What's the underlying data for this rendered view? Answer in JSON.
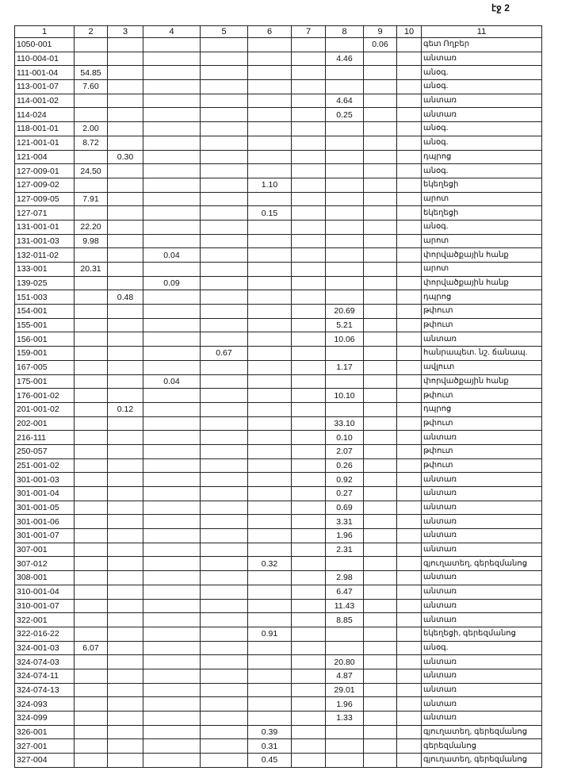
{
  "page_label": "էջ 2",
  "columns": [
    "1",
    "2",
    "3",
    "4",
    "5",
    "6",
    "7",
    "8",
    "9",
    "10",
    "11"
  ],
  "rows": [
    [
      "1050-001",
      "",
      "",
      "",
      "",
      "",
      "",
      "",
      "0.06",
      "",
      "գետ Ողբեր"
    ],
    [
      "110-004-01",
      "",
      "",
      "",
      "",
      "",
      "",
      "4.46",
      "",
      "",
      "անտառ"
    ],
    [
      "111-001-04",
      "54.85",
      "",
      "",
      "",
      "",
      "",
      "",
      "",
      "",
      "անօգ."
    ],
    [
      "113-001-07",
      "7.60",
      "",
      "",
      "",
      "",
      "",
      "",
      "",
      "",
      "անօգ."
    ],
    [
      "114-001-02",
      "",
      "",
      "",
      "",
      "",
      "",
      "4.64",
      "",
      "",
      "անտառ"
    ],
    [
      "114-024",
      "",
      "",
      "",
      "",
      "",
      "",
      "0.25",
      "",
      "",
      "անտառ"
    ],
    [
      "118-001-01",
      "2.00",
      "",
      "",
      "",
      "",
      "",
      "",
      "",
      "",
      "անօգ."
    ],
    [
      "121-001-01",
      "8.72",
      "",
      "",
      "",
      "",
      "",
      "",
      "",
      "",
      "անօգ."
    ],
    [
      "121-004",
      "",
      "0.30",
      "",
      "",
      "",
      "",
      "",
      "",
      "",
      "դպրոց"
    ],
    [
      "127-009-01",
      "24.50",
      "",
      "",
      "",
      "",
      "",
      "",
      "",
      "",
      "անօգ."
    ],
    [
      "127-009-02",
      "",
      "",
      "",
      "",
      "1.10",
      "",
      "",
      "",
      "",
      "եկեղեցի"
    ],
    [
      "127-009-05",
      "7.91",
      "",
      "",
      "",
      "",
      "",
      "",
      "",
      "",
      "արոտ"
    ],
    [
      "127-071",
      "",
      "",
      "",
      "",
      "0.15",
      "",
      "",
      "",
      "",
      "եկեղեցի"
    ],
    [
      "131-001-01",
      "22.20",
      "",
      "",
      "",
      "",
      "",
      "",
      "",
      "",
      "անօգ."
    ],
    [
      "131-001-03",
      "9.98",
      "",
      "",
      "",
      "",
      "",
      "",
      "",
      "",
      "արոտ"
    ],
    [
      "132-011-02",
      "",
      "",
      "0.04",
      "",
      "",
      "",
      "",
      "",
      "",
      "փորվածքային հանք"
    ],
    [
      "133-001",
      "20.31",
      "",
      "",
      "",
      "",
      "",
      "",
      "",
      "",
      "արոտ"
    ],
    [
      "139-025",
      "",
      "",
      "0.09",
      "",
      "",
      "",
      "",
      "",
      "",
      "փորվածքային հանք"
    ],
    [
      "151-003",
      "",
      "0.48",
      "",
      "",
      "",
      "",
      "",
      "",
      "",
      "դպրոց"
    ],
    [
      "154-001",
      "",
      "",
      "",
      "",
      "",
      "",
      "20.69",
      "",
      "",
      "թփուտ"
    ],
    [
      "155-001",
      "",
      "",
      "",
      "",
      "",
      "",
      "5.21",
      "",
      "",
      "թփուտ"
    ],
    [
      "156-001",
      "",
      "",
      "",
      "",
      "",
      "",
      "10.06",
      "",
      "",
      "անտառ"
    ],
    [
      "159-001",
      "",
      "",
      "",
      "0.67",
      "",
      "",
      "",
      "",
      "",
      "հանրապետ. նշ. ճանապ."
    ],
    [
      "167-005",
      "",
      "",
      "",
      "",
      "",
      "",
      "1.17",
      "",
      "",
      "ավլուտ"
    ],
    [
      "175-001",
      "",
      "",
      "0.04",
      "",
      "",
      "",
      "",
      "",
      "",
      "փորվածքային հանք"
    ],
    [
      "176-001-02",
      "",
      "",
      "",
      "",
      "",
      "",
      "10.10",
      "",
      "",
      "թփուտ"
    ],
    [
      "201-001-02",
      "",
      "0.12",
      "",
      "",
      "",
      "",
      "",
      "",
      "",
      "դպրոց"
    ],
    [
      "202-001",
      "",
      "",
      "",
      "",
      "",
      "",
      "33.10",
      "",
      "",
      "թփուտ"
    ],
    [
      "216-111",
      "",
      "",
      "",
      "",
      "",
      "",
      "0.10",
      "",
      "",
      "անտառ"
    ],
    [
      "250-057",
      "",
      "",
      "",
      "",
      "",
      "",
      "2.07",
      "",
      "",
      "թփուտ"
    ],
    [
      "251-001-02",
      "",
      "",
      "",
      "",
      "",
      "",
      "0.26",
      "",
      "",
      "թփուտ"
    ],
    [
      "301-001-03",
      "",
      "",
      "",
      "",
      "",
      "",
      "0.92",
      "",
      "",
      "անտառ"
    ],
    [
      "301-001-04",
      "",
      "",
      "",
      "",
      "",
      "",
      "0.27",
      "",
      "",
      "անտառ"
    ],
    [
      "301-001-05",
      "",
      "",
      "",
      "",
      "",
      "",
      "0.69",
      "",
      "",
      "անտառ"
    ],
    [
      "301-001-06",
      "",
      "",
      "",
      "",
      "",
      "",
      "3.31",
      "",
      "",
      "անտառ"
    ],
    [
      "301-001-07",
      "",
      "",
      "",
      "",
      "",
      "",
      "1.96",
      "",
      "",
      "անտառ"
    ],
    [
      "307-001",
      "",
      "",
      "",
      "",
      "",
      "",
      "2.31",
      "",
      "",
      "անտառ"
    ],
    [
      "307-012",
      "",
      "",
      "",
      "",
      "0.32",
      "",
      "",
      "",
      "",
      "գյուղատեղ, գերեզմանոց"
    ],
    [
      "308-001",
      "",
      "",
      "",
      "",
      "",
      "",
      "2.98",
      "",
      "",
      "անտառ"
    ],
    [
      "310-001-04",
      "",
      "",
      "",
      "",
      "",
      "",
      "6.47",
      "",
      "",
      "անտառ"
    ],
    [
      "310-001-07",
      "",
      "",
      "",
      "",
      "",
      "",
      "11.43",
      "",
      "",
      "անտառ"
    ],
    [
      "322-001",
      "",
      "",
      "",
      "",
      "",
      "",
      "8.85",
      "",
      "",
      "անտառ"
    ],
    [
      "322-016-22",
      "",
      "",
      "",
      "",
      "0.91",
      "",
      "",
      "",
      "",
      "եկեղեցի, գերեզմանոց"
    ],
    [
      "324-001-03",
      "6.07",
      "",
      "",
      "",
      "",
      "",
      "",
      "",
      "",
      "անօգ."
    ],
    [
      "324-074-03",
      "",
      "",
      "",
      "",
      "",
      "",
      "20.80",
      "",
      "",
      "անտառ"
    ],
    [
      "324-074-11",
      "",
      "",
      "",
      "",
      "",
      "",
      "4.87",
      "",
      "",
      "անտառ"
    ],
    [
      "324-074-13",
      "",
      "",
      "",
      "",
      "",
      "",
      "29.01",
      "",
      "",
      "անտառ"
    ],
    [
      "324-093",
      "",
      "",
      "",
      "",
      "",
      "",
      "1.96",
      "",
      "",
      "անտառ"
    ],
    [
      "324-099",
      "",
      "",
      "",
      "",
      "",
      "",
      "1.33",
      "",
      "",
      "անտառ"
    ],
    [
      "326-001",
      "",
      "",
      "",
      "",
      "0.39",
      "",
      "",
      "",
      "",
      "գյուղատեղ, գերեզմանոց"
    ],
    [
      "327-001",
      "",
      "",
      "",
      "",
      "0.31",
      "",
      "",
      "",
      "",
      "գերեզմանոց"
    ],
    [
      "327-004",
      "",
      "",
      "",
      "",
      "0.45",
      "",
      "",
      "",
      "",
      "գյուղատեղ, գերեզմանոց"
    ]
  ]
}
